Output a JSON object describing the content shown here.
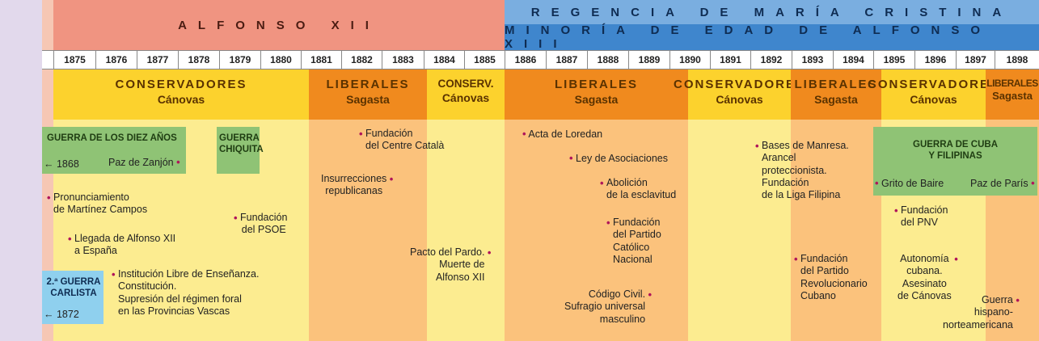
{
  "reigns": {
    "alfonso_xii": "ALFONSO XII",
    "regencia": "REGENCIA DE MARÍA CRISTINA",
    "minoria": "MINORÍA DE EDAD DE ALFONSO XIII"
  },
  "years": [
    "1875",
    "1876",
    "1877",
    "1878",
    "1879",
    "1880",
    "1881",
    "1882",
    "1883",
    "1884",
    "1885",
    "1886",
    "1887",
    "1888",
    "1889",
    "1890",
    "1891",
    "1892",
    "1893",
    "1894",
    "1895",
    "1896",
    "1897",
    "1898"
  ],
  "periods": [
    {
      "name": "CONSERVADORES",
      "leader": "Cánovas",
      "color": "#fcd22d"
    },
    {
      "name": "LIBERALES",
      "leader": "Sagasta",
      "color": "#f08a1e"
    },
    {
      "name": "CONSERV.",
      "leader": "Cánovas",
      "color": "#fcd22d"
    },
    {
      "name": "LIBERALES",
      "leader": "Sagasta",
      "color": "#f08a1e"
    },
    {
      "name": "CONSERVADORES",
      "leader": "Cánovas",
      "color": "#fcd22d"
    },
    {
      "name": "LIBERALES",
      "leader": "Sagasta",
      "color": "#f08a1e"
    },
    {
      "name": "CONSERVADORES",
      "leader": "Cánovas",
      "color": "#fcd22d"
    },
    {
      "name": "LIBERALES",
      "leader": "Sagasta",
      "color": "#f08a1e"
    }
  ],
  "wars": {
    "diez_anos": {
      "title": "GUERRA DE LOS DIEZ AÑOS",
      "start": "1868",
      "end": "Paz de Zanjón"
    },
    "chiquita": {
      "title": "GUERRA\nCHIQUITA"
    },
    "carlista": {
      "title": "2.ª GUERRA\nCARLISTA",
      "start": "1872"
    },
    "cuba": {
      "title": "GUERRA DE CUBA\nY FILIPINAS",
      "start": "Grito de Baire",
      "end": "Paz de París"
    }
  },
  "events": {
    "pronunciamiento": "Pronunciamiento\nde Martínez Campos",
    "llegada": "Llegada de Alfonso XII\na España",
    "institucion": "Institución Libre de Enseñanza.\nConstitución.\nSupresión del régimen foral\nen las Provincias Vascas",
    "psoe": "Fundación\ndel PSOE",
    "centre": "Fundación\ndel Centre Català",
    "insurrecciones": "Insurrecciones\nrepublicanas",
    "pacto": "Pacto del Pardo.\nMuerte de\nAlfonso XII",
    "loredan": "Acta de Loredan",
    "asociaciones": "Ley de Asociaciones",
    "abolicion": "Abolición\nde la esclavitud",
    "catolico": "Fundación\ndel Partido\nCatólico\nNacional",
    "codigo": "Código Civil.\nSufragio universal\nmasculino",
    "manresa": "Bases de Manresa.\nArancel\nproteccionista.\nFundación\nde la Liga Filipina",
    "revolucionario": "Fundación\ndel Partido\nRevolucionario\nCubano",
    "pnv": "Fundación\ndel PNV",
    "autonomia": "Autonomía\ncubana.\nAsesinato\nde Cánovas",
    "hispano": "Guerra\nhispano-\nnorteamericana"
  }
}
